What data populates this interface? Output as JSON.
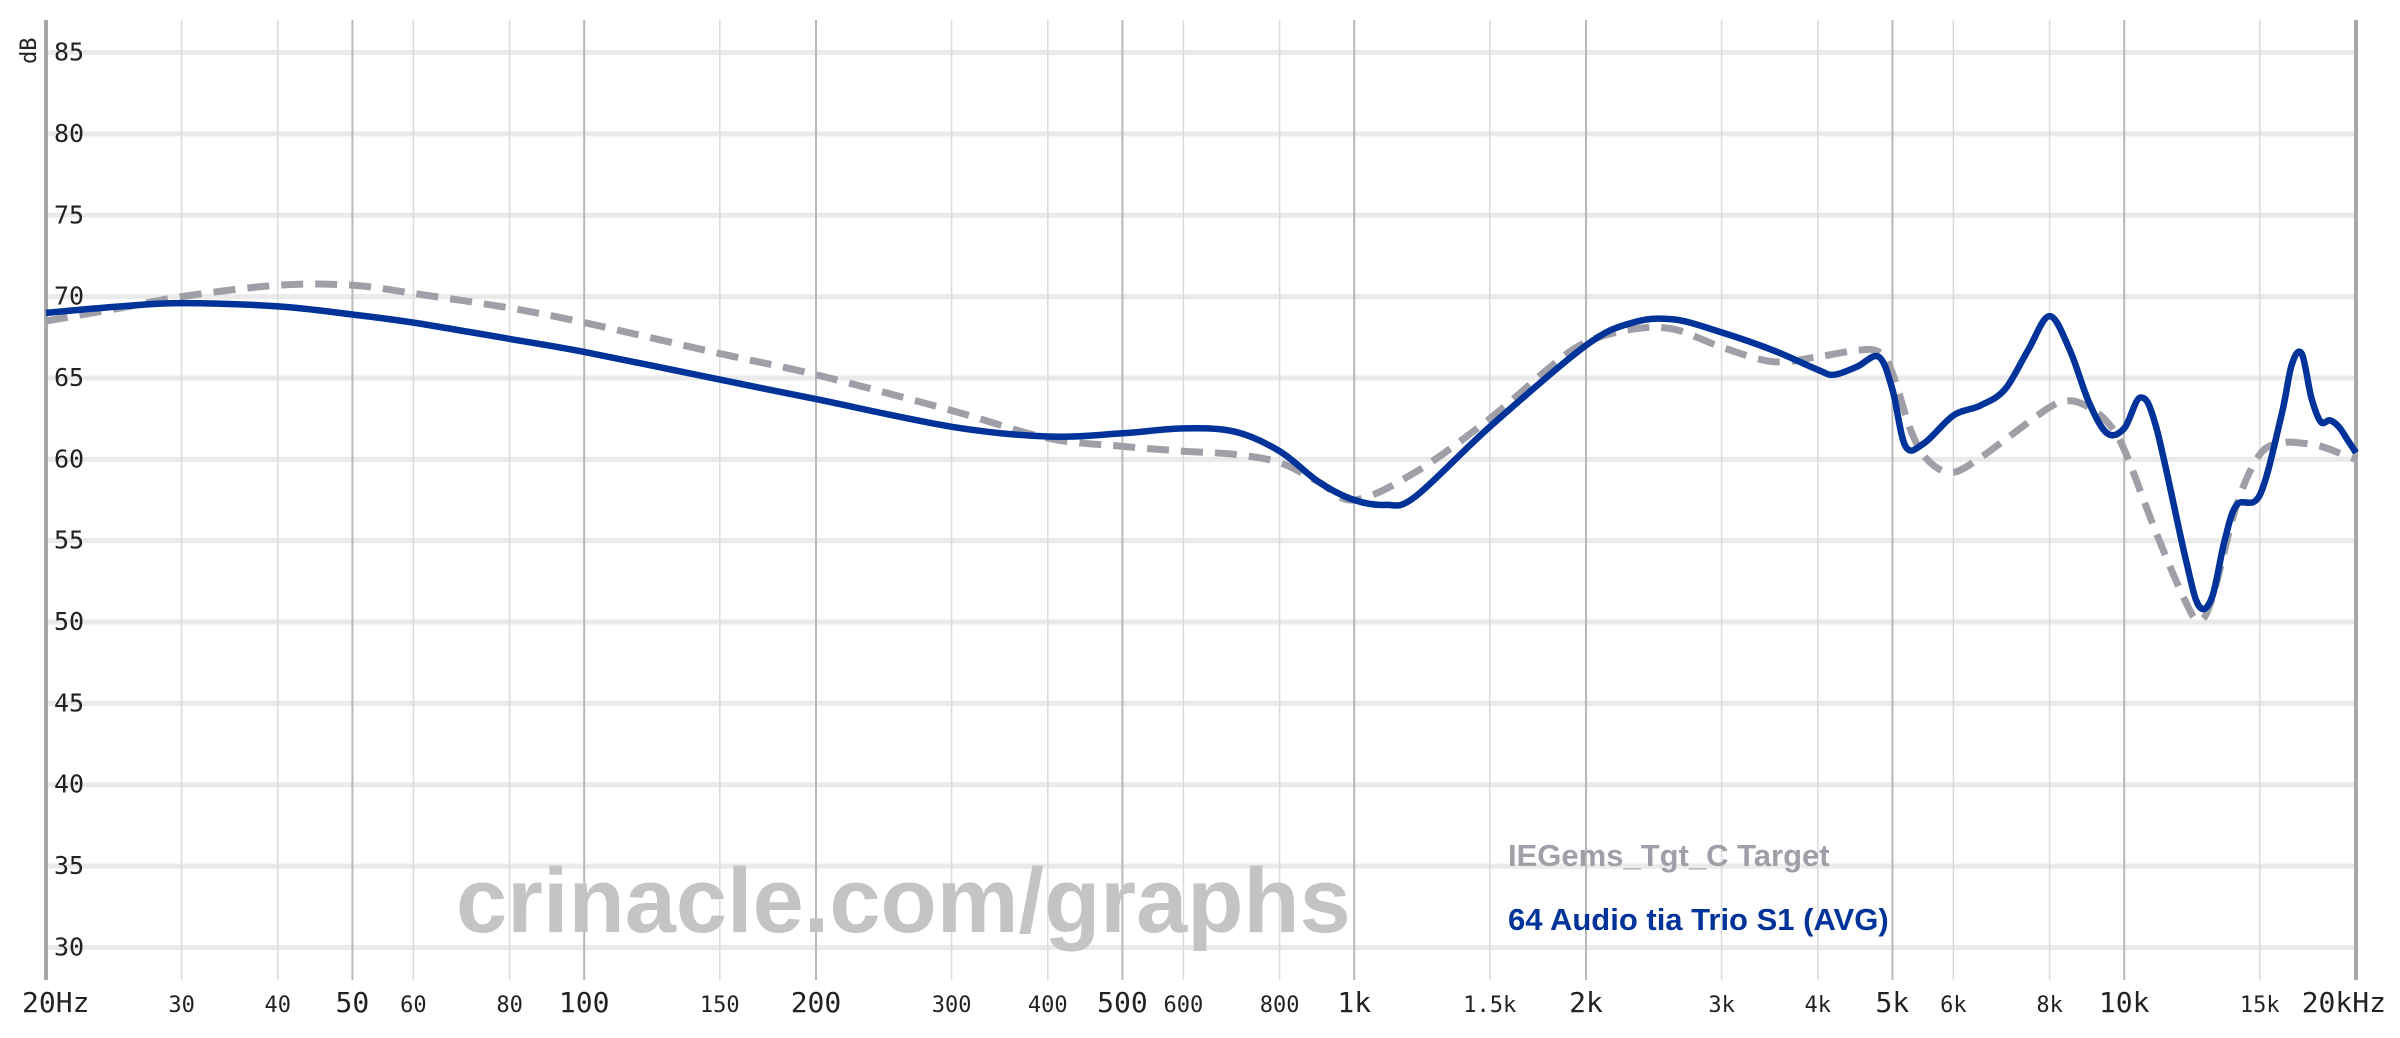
{
  "chart_data": {
    "type": "line",
    "xscale": "log",
    "xlim": [
      20,
      20000
    ],
    "ylim": [
      28,
      87
    ],
    "ylabel": "dB",
    "grid": true,
    "yticks": [
      {
        "value": 85,
        "label": "85"
      },
      {
        "value": 80,
        "label": "80"
      },
      {
        "value": 75,
        "label": "75"
      },
      {
        "value": 70,
        "label": "70"
      },
      {
        "value": 65,
        "label": "65"
      },
      {
        "value": 60,
        "label": "60"
      },
      {
        "value": 55,
        "label": "55"
      },
      {
        "value": 50,
        "label": "50"
      },
      {
        "value": 45,
        "label": "45"
      },
      {
        "value": 40,
        "label": "40"
      },
      {
        "value": 35,
        "label": "35"
      },
      {
        "value": 30,
        "label": "30"
      }
    ],
    "xticks": [
      {
        "value": 20,
        "label": "20Hz",
        "major": true
      },
      {
        "value": 30,
        "label": "30",
        "major": false
      },
      {
        "value": 40,
        "label": "40",
        "major": false
      },
      {
        "value": 50,
        "label": "50",
        "major": true
      },
      {
        "value": 60,
        "label": "60",
        "major": false
      },
      {
        "value": 80,
        "label": "80",
        "major": false
      },
      {
        "value": 100,
        "label": "100",
        "major": true
      },
      {
        "value": 150,
        "label": "150",
        "major": false
      },
      {
        "value": 200,
        "label": "200",
        "major": true
      },
      {
        "value": 300,
        "label": "300",
        "major": false
      },
      {
        "value": 400,
        "label": "400",
        "major": false
      },
      {
        "value": 500,
        "label": "500",
        "major": true
      },
      {
        "value": 600,
        "label": "600",
        "major": false
      },
      {
        "value": 800,
        "label": "800",
        "major": false
      },
      {
        "value": 1000,
        "label": "1k",
        "major": true
      },
      {
        "value": 1500,
        "label": "1.5k",
        "major": false
      },
      {
        "value": 2000,
        "label": "2k",
        "major": true
      },
      {
        "value": 3000,
        "label": "3k",
        "major": false
      },
      {
        "value": 4000,
        "label": "4k",
        "major": false
      },
      {
        "value": 5000,
        "label": "5k",
        "major": true
      },
      {
        "value": 6000,
        "label": "6k",
        "major": false
      },
      {
        "value": 8000,
        "label": "8k",
        "major": false
      },
      {
        "value": 10000,
        "label": "10k",
        "major": true
      },
      {
        "value": 15000,
        "label": "15k",
        "major": false
      },
      {
        "value": 20000,
        "label": "20kHz",
        "major": true
      }
    ],
    "watermark": "crinacle.com/graphs",
    "series": [
      {
        "name": "IEGems_Tgt_C Target",
        "color": "#a09fa8",
        "dashed": true,
        "x": [
          20,
          25,
          30,
          40,
          50,
          60,
          80,
          100,
          150,
          200,
          300,
          400,
          500,
          600,
          700,
          800,
          900,
          1000,
          1200,
          1500,
          1800,
          2000,
          2300,
          2600,
          3000,
          3500,
          4000,
          4500,
          4800,
          5000,
          5300,
          5600,
          6000,
          6500,
          7000,
          8000,
          8500,
          9000,
          9500,
          10000,
          11000,
          12000,
          12500,
          13000,
          14000,
          15000,
          16000,
          17000,
          18000,
          19000,
          20000
        ],
        "y": [
          68.5,
          69.3,
          70.0,
          70.7,
          70.7,
          70.2,
          69.3,
          68.4,
          66.5,
          65.2,
          63.0,
          61.3,
          60.8,
          60.5,
          60.3,
          59.8,
          58.6,
          57.5,
          59.2,
          62.5,
          65.7,
          67.2,
          68.0,
          68.0,
          66.9,
          66.0,
          66.3,
          66.7,
          66.6,
          65.3,
          61.6,
          59.8,
          59.2,
          60.1,
          61.2,
          63.2,
          63.6,
          63.2,
          62.3,
          60.6,
          55.5,
          51.3,
          50.1,
          51.4,
          57.2,
          60.3,
          61.0,
          61.0,
          60.8,
          60.4,
          60.0
        ]
      },
      {
        "name": "64 Audio tia Trio S1 (AVG)",
        "color": "#003399",
        "dashed": false,
        "x": [
          20,
          25,
          30,
          40,
          50,
          60,
          80,
          100,
          150,
          200,
          300,
          400,
          500,
          600,
          700,
          800,
          900,
          1000,
          1100,
          1200,
          1500,
          2000,
          2300,
          2600,
          3000,
          3500,
          4000,
          4200,
          4500,
          4800,
          5000,
          5200,
          5500,
          6000,
          6500,
          7000,
          7500,
          8000,
          8500,
          9000,
          9500,
          10000,
          10500,
          11000,
          12000,
          12500,
          13000,
          13500,
          14000,
          15000,
          16000,
          16500,
          17000,
          17500,
          18000,
          18500,
          19000,
          19500,
          20000
        ],
        "y": [
          69.0,
          69.4,
          69.6,
          69.4,
          68.9,
          68.4,
          67.4,
          66.6,
          64.9,
          63.7,
          62.0,
          61.4,
          61.6,
          61.9,
          61.7,
          60.5,
          58.6,
          57.5,
          57.2,
          57.7,
          62.0,
          67.0,
          68.4,
          68.6,
          67.8,
          66.7,
          65.5,
          65.2,
          65.7,
          66.3,
          64.3,
          60.8,
          61.0,
          62.7,
          63.3,
          64.3,
          66.7,
          68.8,
          66.7,
          63.5,
          61.6,
          61.9,
          63.8,
          62.0,
          54.0,
          51.0,
          51.5,
          55.0,
          57.2,
          57.8,
          62.7,
          65.8,
          66.5,
          63.8,
          62.3,
          62.4,
          62.0,
          61.2,
          60.4
        ]
      }
    ]
  }
}
